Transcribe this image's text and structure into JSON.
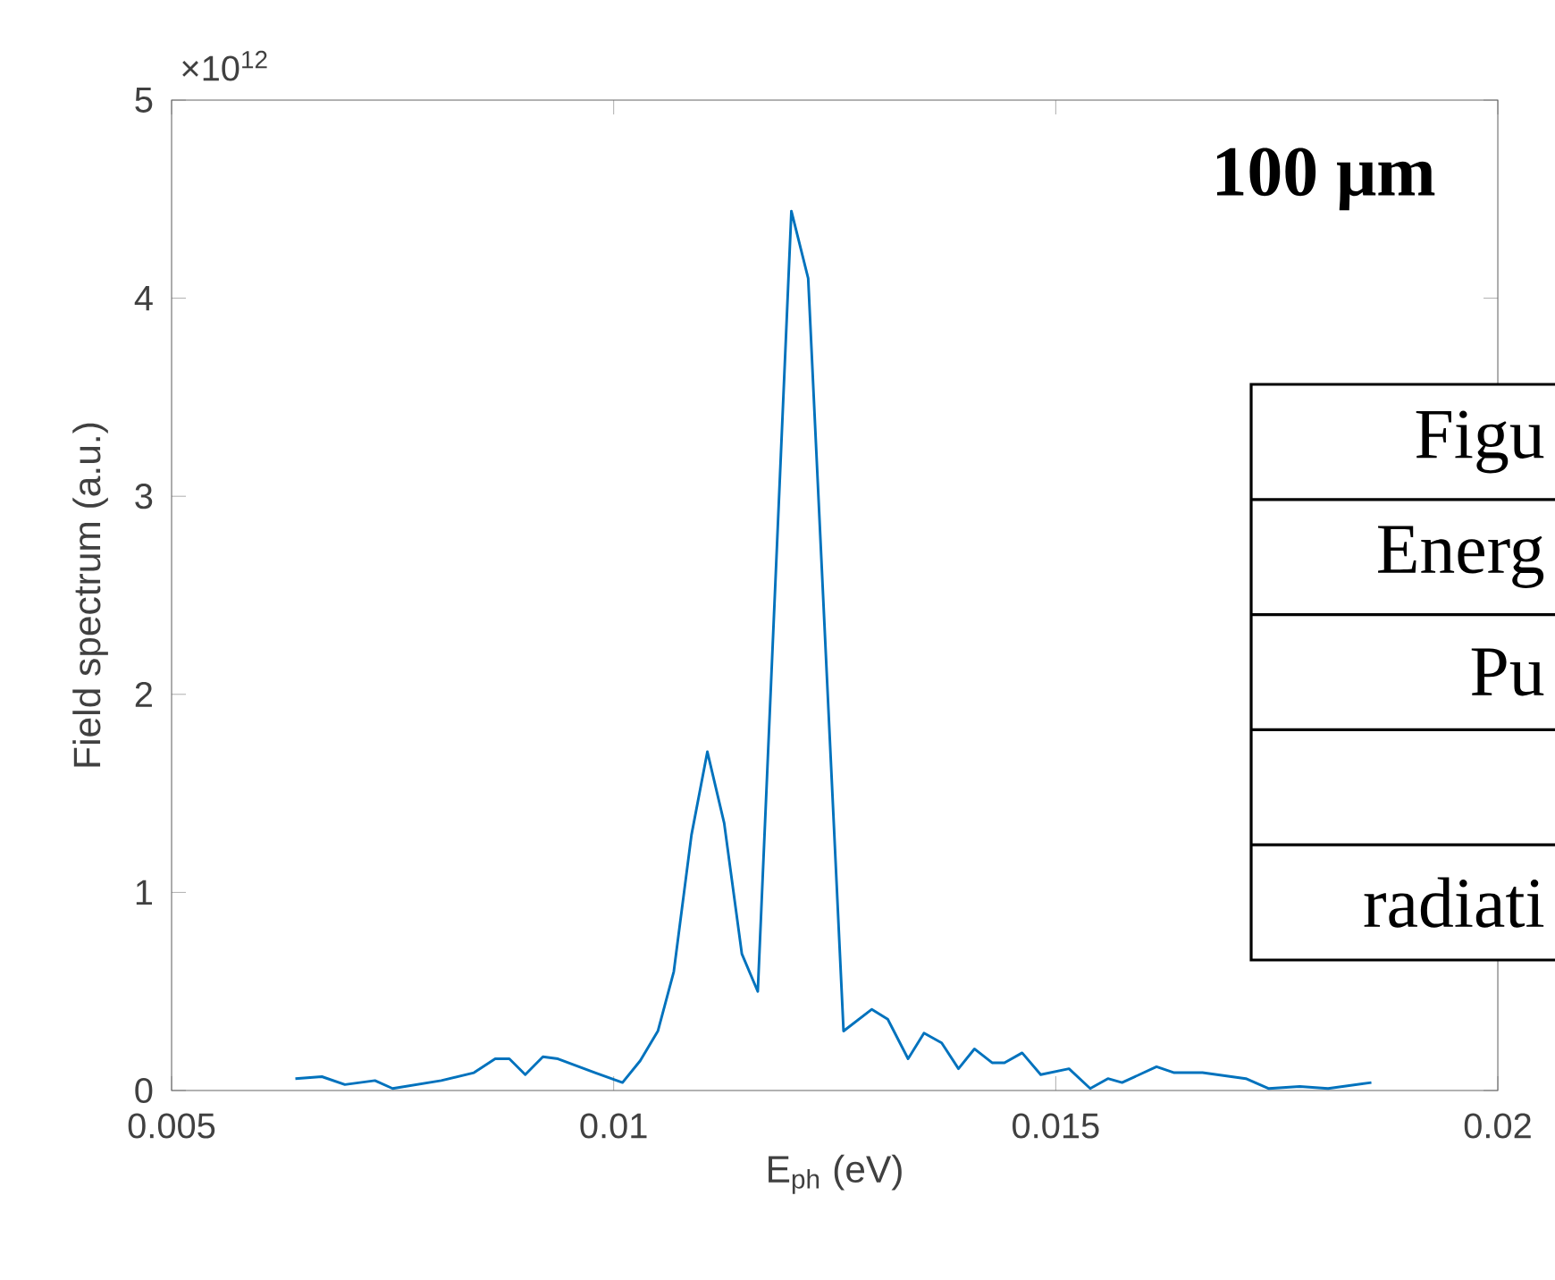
{
  "chart_data": {
    "type": "line",
    "xlabel": "E$_{ph}$ (eV)",
    "ylabel": "Field spectrum (a.u.)",
    "annotations": [
      "×10$^{12}$",
      "**100 μm**",
      "Figu",
      "Energ",
      "Pu",
      "radiati"
    ],
    "x": [
      0.0064,
      0.0067,
      0.00696,
      0.0073,
      0.0075,
      0.00805,
      0.00842,
      0.00866,
      0.00882,
      0.009,
      0.0092,
      0.00937,
      0.00979,
      0.0101,
      0.0103,
      0.0105,
      0.01068,
      0.01088,
      0.01106,
      0.01125,
      0.01145,
      0.01163,
      0.01201,
      0.0122,
      0.0126,
      0.01292,
      0.0131,
      0.01333,
      0.01351,
      0.01371,
      0.0139,
      0.01408,
      0.01428,
      0.01442,
      0.01462,
      0.01483,
      0.01515,
      0.01539,
      0.01559,
      0.01575,
      0.01614,
      0.01634,
      0.01666,
      0.01715,
      0.01741,
      0.01776,
      0.01808,
      0.01857
    ],
    "series": [
      {
        "color": "#0072bd",
        "values": [
          0.06,
          0.07,
          0.03,
          0.05,
          0.01,
          0.05,
          0.09,
          0.16,
          0.16,
          0.08,
          0.17,
          0.16,
          0.09,
          0.04,
          0.15,
          0.3,
          0.6,
          1.29,
          1.71,
          1.35,
          0.69,
          0.5,
          4.44,
          4.1,
          0.3,
          0.41,
          0.36,
          0.16,
          0.29,
          0.24,
          0.11,
          0.21,
          0.14,
          0.14,
          0.19,
          0.08,
          0.11,
          0.01,
          0.06,
          0.04,
          0.12,
          0.09,
          0.09,
          0.06,
          0.01,
          0.02,
          0.01,
          0.04
        ]
      }
    ],
    "xlim": [
      0.005,
      0.02
    ],
    "ylim": [
      0,
      5
    ],
    "xticks": [
      0.005,
      0.01,
      0.015,
      0.02
    ],
    "yticks": [
      0,
      1,
      2,
      3,
      4,
      5
    ],
    "grid": false,
    "marker": "none",
    "line_style": "solid"
  }
}
